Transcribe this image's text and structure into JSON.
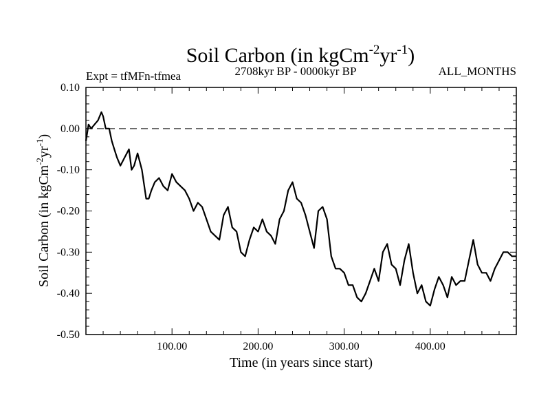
{
  "chart_data": {
    "type": "line",
    "title": {
      "prefix": "Soil Carbon (in kgCm",
      "sup1": "-2",
      "mid": "yr",
      "sup2": "-1",
      "suffix": ")"
    },
    "left_note": "Expt = tfMFn-tfmea",
    "center_note": "2708kyr BP - 0000kyr BP",
    "right_note": "ALL_MONTHS",
    "xlabel": "Time (in years since start)",
    "ylabel": {
      "prefix": "Soil Carbon (in kgCm",
      "sup1": "-2",
      "mid": "yr",
      "sup2": "-1",
      "suffix": ")"
    },
    "xlim": [
      0,
      500
    ],
    "ylim": [
      -0.5,
      0.1
    ],
    "xticks_labeled": [
      100,
      200,
      300,
      400
    ],
    "xtick_labels": [
      "100.00",
      "200.00",
      "300.00",
      "400.00"
    ],
    "yticks": [
      -0.5,
      -0.4,
      -0.3,
      -0.2,
      -0.1,
      0.0,
      0.1
    ],
    "ytick_labels": [
      "-0.50",
      "-0.40",
      "-0.30",
      "-0.20",
      "-0.10",
      "0.00",
      "0.10"
    ],
    "reference_line": {
      "y": 0.0,
      "style": "dashed"
    },
    "series": [
      {
        "name": "Soil Carbon",
        "x": [
          0,
          3,
          6,
          10,
          14,
          18,
          20,
          23,
          27,
          30,
          33,
          36,
          40,
          45,
          50,
          53,
          56,
          60,
          65,
          70,
          73,
          76,
          80,
          85,
          90,
          95,
          100,
          105,
          110,
          115,
          120,
          125,
          130,
          135,
          140,
          145,
          150,
          155,
          160,
          165,
          170,
          175,
          180,
          185,
          190,
          195,
          200,
          205,
          210,
          215,
          220,
          225,
          230,
          235,
          240,
          245,
          250,
          255,
          260,
          265,
          270,
          275,
          280,
          285,
          290,
          295,
          300,
          305,
          310,
          315,
          320,
          325,
          330,
          335,
          340,
          345,
          350,
          355,
          360,
          365,
          370,
          375,
          380,
          385,
          390,
          395,
          400,
          405,
          410,
          415,
          420,
          425,
          430,
          435,
          440,
          445,
          450,
          455,
          460,
          465,
          470,
          475,
          480,
          485,
          490,
          495,
          500
        ],
        "y": [
          -0.03,
          0.01,
          0.0,
          0.01,
          0.02,
          0.04,
          0.03,
          0.0,
          0.0,
          -0.03,
          -0.05,
          -0.07,
          -0.09,
          -0.07,
          -0.05,
          -0.1,
          -0.09,
          -0.06,
          -0.1,
          -0.17,
          -0.17,
          -0.15,
          -0.13,
          -0.12,
          -0.14,
          -0.15,
          -0.11,
          -0.13,
          -0.14,
          -0.15,
          -0.17,
          -0.2,
          -0.18,
          -0.19,
          -0.22,
          -0.25,
          -0.26,
          -0.27,
          -0.21,
          -0.19,
          -0.24,
          -0.25,
          -0.3,
          -0.31,
          -0.27,
          -0.24,
          -0.25,
          -0.22,
          -0.25,
          -0.26,
          -0.28,
          -0.22,
          -0.2,
          -0.15,
          -0.13,
          -0.17,
          -0.18,
          -0.21,
          -0.25,
          -0.29,
          -0.2,
          -0.19,
          -0.22,
          -0.31,
          -0.34,
          -0.34,
          -0.35,
          -0.38,
          -0.38,
          -0.41,
          -0.42,
          -0.4,
          -0.37,
          -0.34,
          -0.37,
          -0.3,
          -0.28,
          -0.33,
          -0.34,
          -0.38,
          -0.32,
          -0.28,
          -0.35,
          -0.4,
          -0.38,
          -0.42,
          -0.43,
          -0.39,
          -0.36,
          -0.38,
          -0.41,
          -0.36,
          -0.38,
          -0.37,
          -0.37,
          -0.32,
          -0.27,
          -0.33,
          -0.35,
          -0.35,
          -0.37,
          -0.34,
          -0.32,
          -0.3,
          -0.3,
          -0.31,
          -0.31
        ]
      }
    ]
  }
}
